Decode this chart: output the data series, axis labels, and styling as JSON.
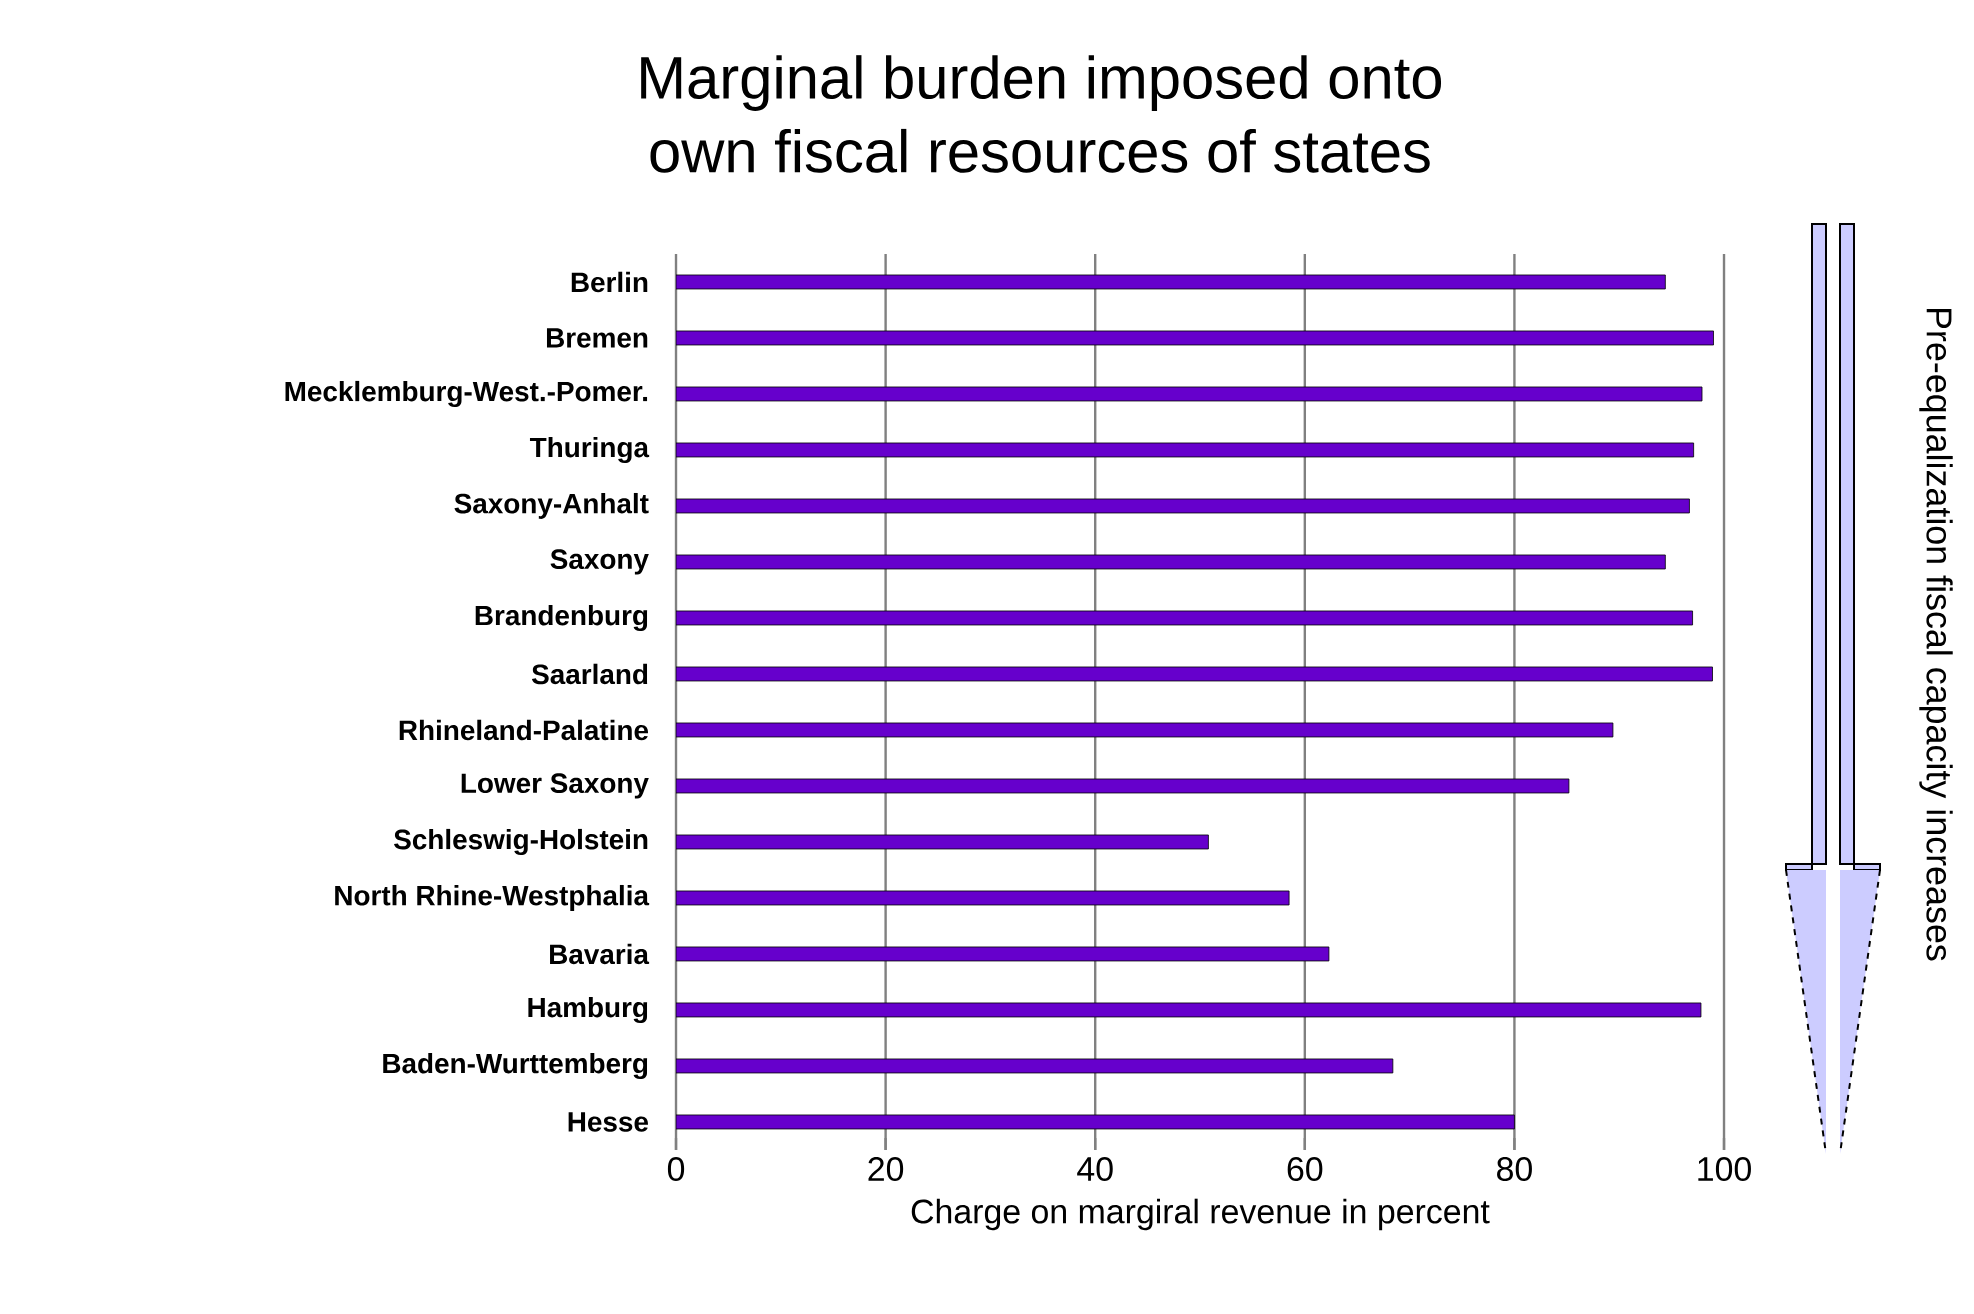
{
  "chart_data": {
    "type": "bar",
    "orientation": "horizontal",
    "title": "Marginal  burden imposed onto\nown fiscal resources of states",
    "categories": [
      "Berlin",
      "Bremen",
      "Mecklemburg-West.-Pomer.",
      "Thuringa",
      "Saxony-Anhalt",
      "Saxony",
      "Brandenburg",
      "Saarland",
      "Rhineland-Palatine",
      "Lower Saxony",
      "Schleswig-Holstein",
      "North Rhine-Westphalia",
      "Bavaria",
      "Hamburg",
      "Baden-Wurttemberg",
      "Hesse"
    ],
    "values": [
      94.4,
      99.0,
      97.9,
      97.1,
      96.7,
      94.4,
      97.0,
      98.9,
      89.4,
      85.2,
      50.8,
      58.5,
      62.3,
      97.8,
      68.4,
      80.0
    ],
    "color": "#6600cc",
    "xlim": [
      0,
      100
    ],
    "xticks": [
      0,
      20,
      40,
      60,
      80,
      100
    ],
    "grid": "x",
    "xlabel": "Charge on margiral revenue in percent",
    "annotations": [
      "Pre-equalization fiscal capacity increases"
    ]
  }
}
